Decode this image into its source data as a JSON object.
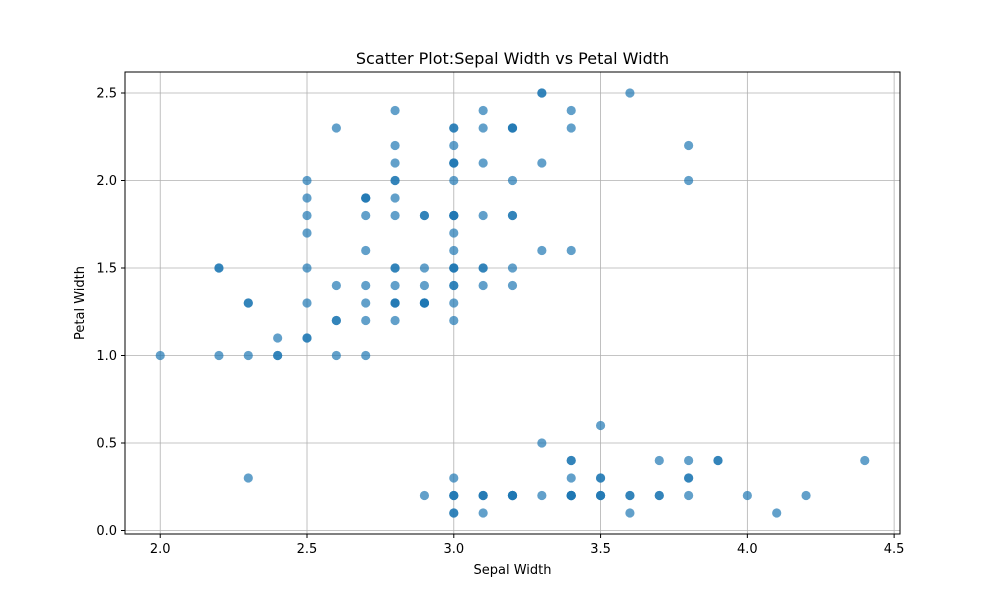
{
  "chart_data": {
    "type": "scatter",
    "title": "Scatter Plot:Sepal Width vs Petal Width",
    "xlabel": "Sepal Width",
    "ylabel": "Petal Width",
    "xlim": [
      1.88,
      4.52
    ],
    "ylim": [
      -0.02,
      2.62
    ],
    "x_ticks": [
      2.0,
      2.5,
      3.0,
      3.5,
      4.0,
      4.5
    ],
    "x_tick_labels": [
      "2.0",
      "2.5",
      "3.0",
      "3.5",
      "4.0",
      "4.5"
    ],
    "y_ticks": [
      0.0,
      0.5,
      1.0,
      1.5,
      2.0,
      2.5
    ],
    "y_tick_labels": [
      "0.0",
      "0.5",
      "1.0",
      "1.5",
      "2.0",
      "2.5"
    ],
    "grid": true,
    "marker_color": "#1f77b4",
    "marker_alpha": 0.7,
    "points": [
      [
        3.5,
        0.2
      ],
      [
        3.0,
        0.2
      ],
      [
        3.2,
        0.2
      ],
      [
        3.1,
        0.2
      ],
      [
        3.6,
        0.2
      ],
      [
        3.9,
        0.4
      ],
      [
        3.4,
        0.3
      ],
      [
        3.4,
        0.2
      ],
      [
        2.9,
        0.2
      ],
      [
        3.1,
        0.1
      ],
      [
        3.7,
        0.2
      ],
      [
        3.4,
        0.2
      ],
      [
        3.0,
        0.1
      ],
      [
        3.0,
        0.1
      ],
      [
        4.0,
        0.2
      ],
      [
        4.4,
        0.4
      ],
      [
        3.9,
        0.4
      ],
      [
        3.5,
        0.3
      ],
      [
        3.8,
        0.3
      ],
      [
        3.8,
        0.3
      ],
      [
        3.4,
        0.2
      ],
      [
        3.7,
        0.4
      ],
      [
        3.6,
        0.2
      ],
      [
        3.3,
        0.5
      ],
      [
        3.4,
        0.2
      ],
      [
        3.0,
        0.2
      ],
      [
        3.4,
        0.4
      ],
      [
        3.5,
        0.2
      ],
      [
        3.4,
        0.2
      ],
      [
        3.2,
        0.2
      ],
      [
        3.1,
        0.2
      ],
      [
        3.4,
        0.4
      ],
      [
        4.1,
        0.1
      ],
      [
        4.2,
        0.2
      ],
      [
        3.1,
        0.2
      ],
      [
        3.2,
        0.2
      ],
      [
        3.5,
        0.2
      ],
      [
        3.6,
        0.1
      ],
      [
        3.0,
        0.2
      ],
      [
        3.4,
        0.2
      ],
      [
        3.5,
        0.3
      ],
      [
        2.3,
        0.3
      ],
      [
        3.2,
        0.2
      ],
      [
        3.5,
        0.6
      ],
      [
        3.8,
        0.4
      ],
      [
        3.0,
        0.3
      ],
      [
        3.8,
        0.2
      ],
      [
        3.2,
        0.2
      ],
      [
        3.7,
        0.2
      ],
      [
        3.3,
        0.2
      ],
      [
        3.2,
        1.4
      ],
      [
        3.2,
        1.5
      ],
      [
        3.1,
        1.5
      ],
      [
        2.3,
        1.3
      ],
      [
        2.8,
        1.5
      ],
      [
        2.8,
        1.3
      ],
      [
        3.3,
        1.6
      ],
      [
        2.4,
        1.0
      ],
      [
        2.9,
        1.3
      ],
      [
        2.7,
        1.4
      ],
      [
        2.0,
        1.0
      ],
      [
        3.0,
        1.5
      ],
      [
        2.2,
        1.0
      ],
      [
        2.9,
        1.4
      ],
      [
        2.9,
        1.3
      ],
      [
        3.1,
        1.4
      ],
      [
        3.0,
        1.5
      ],
      [
        2.7,
        1.0
      ],
      [
        2.2,
        1.5
      ],
      [
        2.5,
        1.1
      ],
      [
        3.2,
        1.8
      ],
      [
        2.8,
        1.3
      ],
      [
        2.5,
        1.5
      ],
      [
        2.8,
        1.2
      ],
      [
        2.9,
        1.3
      ],
      [
        3.0,
        1.4
      ],
      [
        2.8,
        1.4
      ],
      [
        3.0,
        1.7
      ],
      [
        2.9,
        1.5
      ],
      [
        2.6,
        1.0
      ],
      [
        2.4,
        1.1
      ],
      [
        2.4,
        1.0
      ],
      [
        2.7,
        1.2
      ],
      [
        2.7,
        1.6
      ],
      [
        3.0,
        1.5
      ],
      [
        3.4,
        1.6
      ],
      [
        3.1,
        1.5
      ],
      [
        2.3,
        1.3
      ],
      [
        3.0,
        1.3
      ],
      [
        2.5,
        1.3
      ],
      [
        2.6,
        1.2
      ],
      [
        3.0,
        1.4
      ],
      [
        2.6,
        1.2
      ],
      [
        2.3,
        1.0
      ],
      [
        2.7,
        1.3
      ],
      [
        3.0,
        1.2
      ],
      [
        2.9,
        1.3
      ],
      [
        2.9,
        1.3
      ],
      [
        2.5,
        1.1
      ],
      [
        2.8,
        1.3
      ],
      [
        3.3,
        2.5
      ],
      [
        2.7,
        1.9
      ],
      [
        3.0,
        2.1
      ],
      [
        2.9,
        1.8
      ],
      [
        3.0,
        2.2
      ],
      [
        3.0,
        2.1
      ],
      [
        2.5,
        1.7
      ],
      [
        2.9,
        1.8
      ],
      [
        2.5,
        1.8
      ],
      [
        3.6,
        2.5
      ],
      [
        3.2,
        2.0
      ],
      [
        2.7,
        1.9
      ],
      [
        3.0,
        2.1
      ],
      [
        2.5,
        2.0
      ],
      [
        2.8,
        2.4
      ],
      [
        3.2,
        2.3
      ],
      [
        3.0,
        1.8
      ],
      [
        3.8,
        2.2
      ],
      [
        2.6,
        2.3
      ],
      [
        2.2,
        1.5
      ],
      [
        3.2,
        2.3
      ],
      [
        2.8,
        2.0
      ],
      [
        2.8,
        2.0
      ],
      [
        2.7,
        1.8
      ],
      [
        3.3,
        2.1
      ],
      [
        3.2,
        1.8
      ],
      [
        2.8,
        1.8
      ],
      [
        3.0,
        1.8
      ],
      [
        2.8,
        2.1
      ],
      [
        3.0,
        1.6
      ],
      [
        2.8,
        1.9
      ],
      [
        3.8,
        2.0
      ],
      [
        2.8,
        2.2
      ],
      [
        2.8,
        1.5
      ],
      [
        2.6,
        1.4
      ],
      [
        3.0,
        2.3
      ],
      [
        3.4,
        2.4
      ],
      [
        3.1,
        1.8
      ],
      [
        3.0,
        1.8
      ],
      [
        3.1,
        2.1
      ],
      [
        3.1,
        2.4
      ],
      [
        3.1,
        2.3
      ],
      [
        2.7,
        1.9
      ],
      [
        3.2,
        2.3
      ],
      [
        3.3,
        2.5
      ],
      [
        3.0,
        2.3
      ],
      [
        2.5,
        1.9
      ],
      [
        3.0,
        2.0
      ],
      [
        3.4,
        2.3
      ],
      [
        3.0,
        1.8
      ]
    ]
  }
}
